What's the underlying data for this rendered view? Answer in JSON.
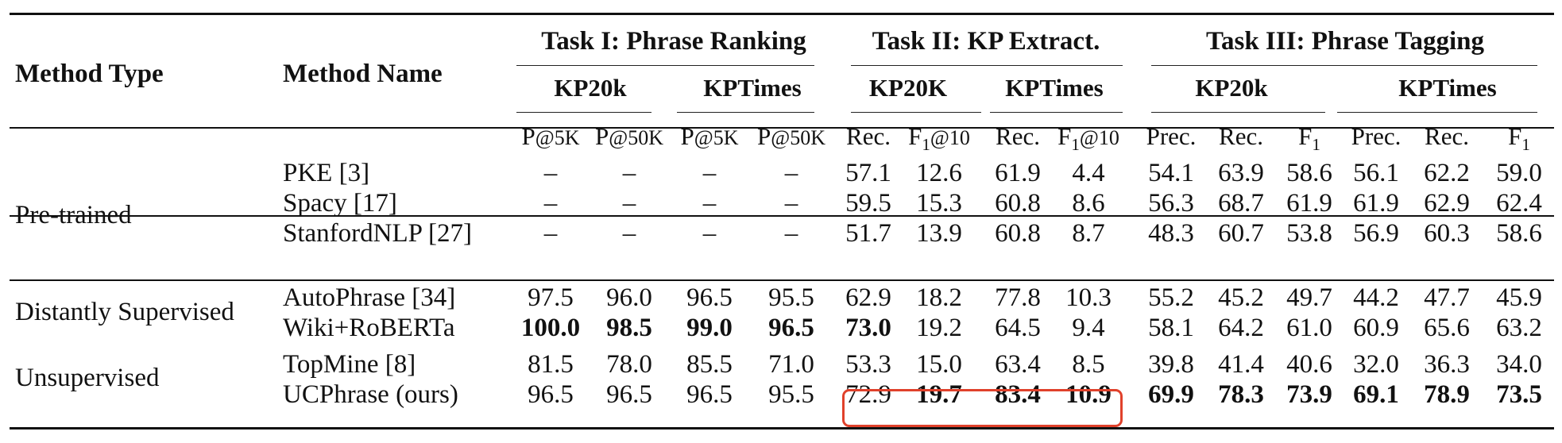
{
  "table": {
    "headers": {
      "method_type": "Method Type",
      "method_name": "Method Name",
      "tasks": [
        {
          "label": "Task I: Phrase Ranking"
        },
        {
          "label": "Task II: KP Extract."
        },
        {
          "label": "Task III: Phrase Tagging"
        }
      ],
      "datasets": [
        "KP20k",
        "KPTimes",
        "KP20K",
        "KPTimes",
        "KP20k",
        "KPTimes"
      ],
      "metrics": [
        {
          "main": "P",
          "suffix": "@5K"
        },
        {
          "main": "P",
          "suffix": "@50K"
        },
        {
          "main": "P",
          "suffix": "@5K"
        },
        {
          "main": "P",
          "suffix": "@50K"
        },
        {
          "main": "Rec.",
          "suffix": ""
        },
        {
          "main": "F",
          "sub": "1",
          "suffix": "@10"
        },
        {
          "main": "Rec.",
          "suffix": ""
        },
        {
          "main": "F",
          "sub": "1",
          "suffix": "@10"
        },
        {
          "main": "Prec.",
          "suffix": ""
        },
        {
          "main": "Rec.",
          "suffix": ""
        },
        {
          "main": "F",
          "sub": "1",
          "suffix": ""
        },
        {
          "main": "Prec.",
          "suffix": ""
        },
        {
          "main": "Rec.",
          "suffix": ""
        },
        {
          "main": "F",
          "sub": "1",
          "suffix": ""
        }
      ]
    },
    "groups": [
      {
        "type": "Pre-trained",
        "rows": [
          {
            "name": "PKE [3]",
            "values": [
              "–",
              "–",
              "–",
              "–",
              "57.1",
              "12.6",
              "61.9",
              "4.4",
              "54.1",
              "63.9",
              "58.6",
              "56.1",
              "62.2",
              "59.0"
            ],
            "bold": []
          },
          {
            "name": "Spacy [17]",
            "values": [
              "–",
              "–",
              "–",
              "–",
              "59.5",
              "15.3",
              "60.8",
              "8.6",
              "56.3",
              "68.7",
              "61.9",
              "61.9",
              "62.9",
              "62.4"
            ],
            "bold": []
          },
          {
            "name": "StanfordNLP [27]",
            "values": [
              "–",
              "–",
              "–",
              "–",
              "51.7",
              "13.9",
              "60.8",
              "8.7",
              "48.3",
              "60.7",
              "53.8",
              "56.9",
              "60.3",
              "58.6"
            ],
            "bold": []
          }
        ]
      },
      {
        "type": "Distantly Supervised",
        "rows": [
          {
            "name": "AutoPhrase [34]",
            "values": [
              "97.5",
              "96.0",
              "96.5",
              "95.5",
              "62.9",
              "18.2",
              "77.8",
              "10.3",
              "55.2",
              "45.2",
              "49.7",
              "44.2",
              "47.7",
              "45.9"
            ],
            "bold": []
          },
          {
            "name": "Wiki+RoBERTa",
            "values": [
              "100.0",
              "98.5",
              "99.0",
              "96.5",
              "73.0",
              "19.2",
              "64.5",
              "9.4",
              "58.1",
              "64.2",
              "61.0",
              "60.9",
              "65.6",
              "63.2"
            ],
            "bold": [
              0,
              1,
              2,
              3,
              4
            ]
          }
        ]
      },
      {
        "type": "Unsupervised",
        "rows": [
          {
            "name": "TopMine [8]",
            "values": [
              "81.5",
              "78.0",
              "85.5",
              "71.0",
              "53.3",
              "15.0",
              "63.4",
              "8.5",
              "39.8",
              "41.4",
              "40.6",
              "32.0",
              "36.3",
              "34.0"
            ],
            "bold": []
          },
          {
            "name": "UCPhrase (ours)",
            "values": [
              "96.5",
              "96.5",
              "96.5",
              "95.5",
              "72.9",
              "19.7",
              "83.4",
              "10.9",
              "69.9",
              "78.3",
              "73.9",
              "69.1",
              "78.9",
              "73.5"
            ],
            "bold": [
              5,
              6,
              7,
              8,
              9,
              10,
              11,
              12,
              13
            ]
          }
        ]
      }
    ],
    "highlight_color": "#e0412b"
  }
}
